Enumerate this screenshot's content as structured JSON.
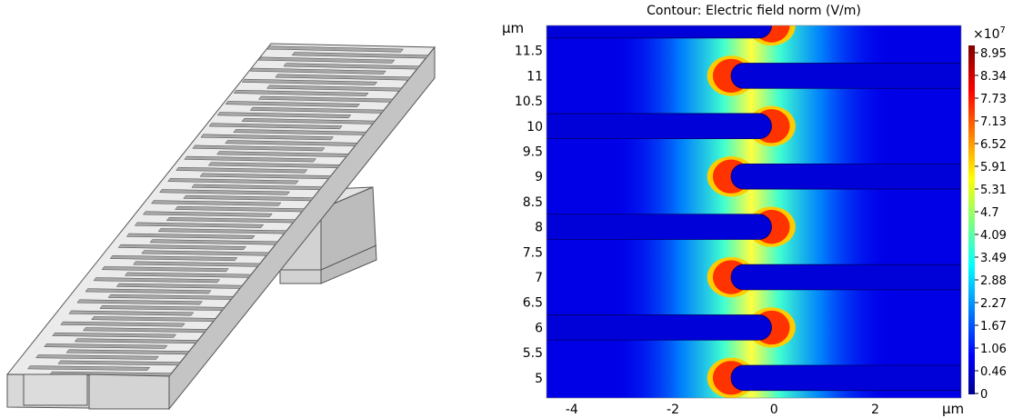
{
  "left_panel": {
    "description_icon": "3d-electrode-geometry-render",
    "finger_count": 60
  },
  "chart_data": {
    "type": "heatmap",
    "title": "Contour: Electric field norm (V/m)",
    "xlabel": "",
    "ylabel": "",
    "x_unit": "μm",
    "y_unit": "μm",
    "xlim": [
      -4.5,
      3.7
    ],
    "ylim": [
      4.6,
      12.0
    ],
    "x_ticks": [
      {
        "value": -4,
        "label": "-4"
      },
      {
        "value": -2,
        "label": "-2"
      },
      {
        "value": 0,
        "label": "0"
      },
      {
        "value": 2,
        "label": "2"
      }
    ],
    "y_ticks": [
      {
        "value": 5,
        "label": "5"
      },
      {
        "value": 5.5,
        "label": "5.5"
      },
      {
        "value": 6,
        "label": "6"
      },
      {
        "value": 6.5,
        "label": "6.5"
      },
      {
        "value": 7,
        "label": "7"
      },
      {
        "value": 7.5,
        "label": "7.5"
      },
      {
        "value": 8,
        "label": "8"
      },
      {
        "value": 8.5,
        "label": "8.5"
      },
      {
        "value": 9,
        "label": "9"
      },
      {
        "value": 9.5,
        "label": "9.5"
      },
      {
        "value": 10,
        "label": "10"
      },
      {
        "value": 10.5,
        "label": "10.5"
      },
      {
        "value": 11,
        "label": "11"
      },
      {
        "value": 11.5,
        "label": "11.5"
      }
    ],
    "electrode_fingers": [
      {
        "side": "left",
        "y_center": 12.0,
        "tip_x": -0.05
      },
      {
        "side": "right",
        "y_center": 11.0,
        "tip_x": -0.85
      },
      {
        "side": "left",
        "y_center": 10.0,
        "tip_x": -0.05
      },
      {
        "side": "right",
        "y_center": 9.0,
        "tip_x": -0.85
      },
      {
        "side": "left",
        "y_center": 8.0,
        "tip_x": -0.05
      },
      {
        "side": "right",
        "y_center": 7.0,
        "tip_x": -0.85
      },
      {
        "side": "left",
        "y_center": 6.0,
        "tip_x": -0.05
      },
      {
        "side": "right",
        "y_center": 5.0,
        "tip_x": -0.85
      }
    ],
    "finger_half_width": 0.25,
    "colorbar": {
      "exponent_label": "×10",
      "exponent_power": "7",
      "min": 0,
      "max": 8.95,
      "tick_labels": [
        "8.95",
        "8.34",
        "7.73",
        "7.13",
        "6.52",
        "5.91",
        "5.31",
        "4.7",
        "4.09",
        "3.49",
        "2.88",
        "2.27",
        "1.67",
        "1.06",
        "0.46",
        "0"
      ],
      "colormap": [
        "#00008f",
        "#0000ff",
        "#00ffff",
        "#ffff00",
        "#ff0000",
        "#800000"
      ]
    }
  }
}
